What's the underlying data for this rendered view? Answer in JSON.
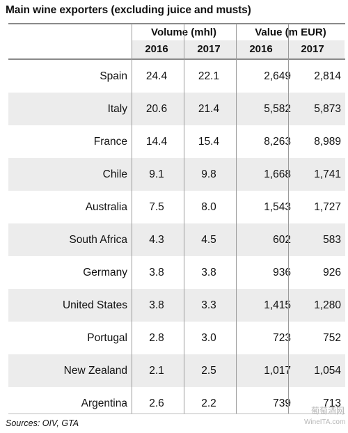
{
  "title": "Main wine exporters (excluding juice and musts)",
  "header": {
    "volume_label": "Volume (mhl)",
    "value_label": "Value (m EUR)",
    "years": [
      "2016",
      "2017",
      "2016",
      "2017"
    ]
  },
  "rows": [
    {
      "country": "Spain",
      "vol2016": "24.4",
      "vol2017": "22.1",
      "val2016": "2,649",
      "val2017": "2,814"
    },
    {
      "country": "Italy",
      "vol2016": "20.6",
      "vol2017": "21.4",
      "val2016": "5,582",
      "val2017": "5,873"
    },
    {
      "country": "France",
      "vol2016": "14.4",
      "vol2017": "15.4",
      "val2016": "8,263",
      "val2017": "8,989"
    },
    {
      "country": "Chile",
      "vol2016": "9.1",
      "vol2017": "9.8",
      "val2016": "1,668",
      "val2017": "1,741"
    },
    {
      "country": "Australia",
      "vol2016": "7.5",
      "vol2017": "8.0",
      "val2016": "1,543",
      "val2017": "1,727"
    },
    {
      "country": "South Africa",
      "vol2016": "4.3",
      "vol2017": "4.5",
      "val2016": "602",
      "val2017": "583"
    },
    {
      "country": "Germany",
      "vol2016": "3.8",
      "vol2017": "3.8",
      "val2016": "936",
      "val2017": "926"
    },
    {
      "country": "United States",
      "vol2016": "3.8",
      "vol2017": "3.3",
      "val2016": "1,415",
      "val2017": "1,280"
    },
    {
      "country": "Portugal",
      "vol2016": "2.8",
      "vol2017": "3.0",
      "val2016": "723",
      "val2017": "752"
    },
    {
      "country": "New Zealand",
      "vol2016": "2.1",
      "vol2017": "2.5",
      "val2016": "1,017",
      "val2017": "1,054"
    },
    {
      "country": "Argentina",
      "vol2016": "2.6",
      "vol2017": "2.2",
      "val2016": "739",
      "val2017": "713"
    }
  ],
  "source": "Sources: OIV, GTA",
  "watermark": {
    "cn": "葡萄酒网",
    "en": "WineITA.com"
  }
}
